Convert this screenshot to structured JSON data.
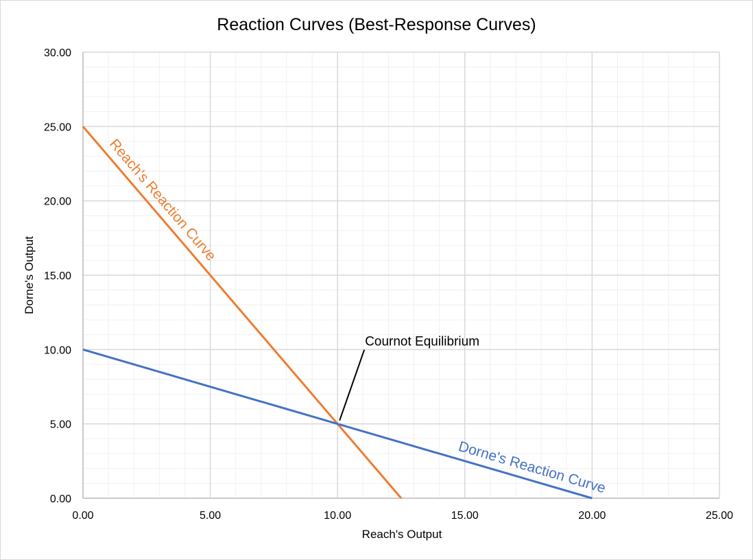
{
  "chart_data": {
    "type": "line",
    "title": "Reaction Curves (Best-Response Curves)",
    "xlabel": "Reach's Output",
    "ylabel": "Dorne's Output",
    "xlim": [
      0,
      25
    ],
    "ylim": [
      0,
      30
    ],
    "x_ticks": [
      "0.00",
      "5.00",
      "10.00",
      "15.00",
      "20.00",
      "25.00"
    ],
    "y_ticks": [
      "0.00",
      "5.00",
      "10.00",
      "15.00",
      "20.00",
      "25.00",
      "30.00"
    ],
    "x_tick_values": [
      0,
      5,
      10,
      15,
      20,
      25
    ],
    "y_tick_values": [
      0,
      5,
      10,
      15,
      20,
      25,
      30
    ],
    "grid": true,
    "legend": "none",
    "series": [
      {
        "name": "Reach's Reaction Curve",
        "color": "#ed7d31",
        "points": [
          [
            0,
            25
          ],
          [
            12.5,
            0
          ]
        ]
      },
      {
        "name": "Dorne's Reaction Curve",
        "color": "#4472c4",
        "points": [
          [
            0,
            10
          ],
          [
            20,
            0
          ]
        ]
      }
    ],
    "annotations": [
      {
        "text": "Cournot Equilibrium",
        "x": 10,
        "y": 5
      }
    ]
  }
}
